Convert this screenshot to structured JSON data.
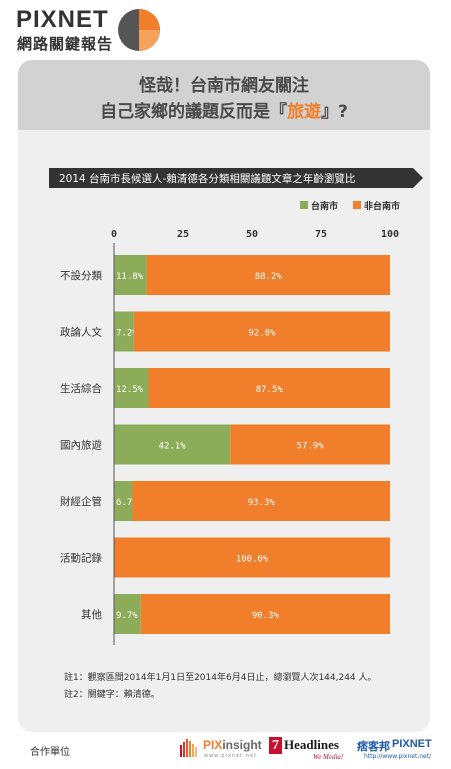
{
  "brand": {
    "title": "PIXNET",
    "subtitle": "網路關鍵報告"
  },
  "headline": {
    "line1": "怪哉！台南市網友關注",
    "line2_prefix": "自己家鄉的議題反而是『",
    "line2_accent": "旅遊",
    "line2_suffix": "』?"
  },
  "chart_data": {
    "type": "bar",
    "orientation": "horizontal",
    "stacked": true,
    "title": "2014 台南市長候選人-賴清德各分類相關議題文章之年齡瀏覽比",
    "categories": [
      "不設分類",
      "政論人文",
      "生活綜合",
      "國內旅遊",
      "財經企管",
      "活動記錄",
      "其他"
    ],
    "series": [
      {
        "name": "台南市",
        "color": "#8cac5a",
        "values": [
          11.8,
          7.2,
          12.5,
          42.1,
          6.7,
          0,
          9.7
        ],
        "labels": [
          "11.8%",
          "7.2%",
          "12.5%",
          "42.1%",
          "6.7%",
          "",
          "9.7%"
        ]
      },
      {
        "name": "非台南市",
        "color": "#f07e2a",
        "values": [
          88.2,
          92.8,
          87.5,
          57.9,
          93.3,
          100,
          90.3
        ],
        "labels": [
          "88.2%",
          "92.8%",
          "87.5%",
          "57.9%",
          "93.3%",
          "100.0%",
          "90.3%"
        ]
      }
    ],
    "xlim": [
      0,
      100
    ],
    "xticks": [
      "0",
      "25",
      "50",
      "75",
      "100"
    ],
    "legend_position": "top-right",
    "grid": false
  },
  "footnotes": {
    "note1": "註1：觀察區間2014年1月1日至2014年6月4日止，總瀏覽人次144,244 人。",
    "note2": "註2：關鍵字：賴清德。"
  },
  "footer": {
    "partner_label": "合作單位",
    "pixinsight_name_a": "PIX",
    "pixinsight_name_b": "insight",
    "pixinsight_url": "www.pixnet.net",
    "headlines_number": "7",
    "headlines_name": "Headlines",
    "headlines_tag": "We Media!",
    "pixnet_cn": "痞客邦",
    "pixnet_en": "PIXNET",
    "pixnet_url": "http://www.pixnet.net/"
  }
}
